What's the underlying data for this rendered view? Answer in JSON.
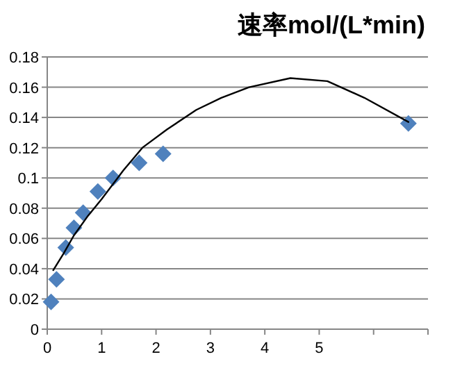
{
  "chart_data": {
    "type": "scatter",
    "title": "速率mol/(L*min)",
    "xlim": [
      0,
      7
    ],
    "xticks": [
      0,
      1,
      2,
      3,
      4,
      5,
      {
        "value": 6,
        "label": null
      },
      {
        "value": 7,
        "label": null
      }
    ],
    "ylim": [
      0,
      0.18
    ],
    "yticks": [
      0,
      0.02,
      0.04,
      0.06,
      0.08,
      {
        "value": 0.1,
        "label": "0.1"
      },
      0.12,
      0.14,
      0.16,
      0.18
    ],
    "grid": "y",
    "series": [
      {
        "marker": "diamond",
        "color": "#4f81bd",
        "x": [
          0.07,
          0.17,
          0.34,
          0.49,
          0.66,
          0.93,
          1.21,
          1.69,
          2.13,
          6.64
        ],
        "values": [
          0.018,
          0.033,
          0.054,
          0.067,
          0.077,
          0.091,
          0.1,
          0.11,
          0.116,
          0.136
        ]
      },
      {
        "type": "line",
        "marker": "none",
        "line_style": "solid",
        "color": "#000000",
        "x": [
          0.11,
          0.3,
          0.49,
          0.75,
          1.0,
          1.4,
          1.75,
          2.2,
          2.74,
          3.2,
          3.71,
          4.47,
          5.15,
          5.83,
          6.64
        ],
        "values": [
          0.039,
          0.05,
          0.062,
          0.075,
          0.086,
          0.105,
          0.12,
          0.132,
          0.145,
          0.153,
          0.16,
          0.166,
          0.164,
          0.153,
          0.137
        ]
      }
    ]
  }
}
